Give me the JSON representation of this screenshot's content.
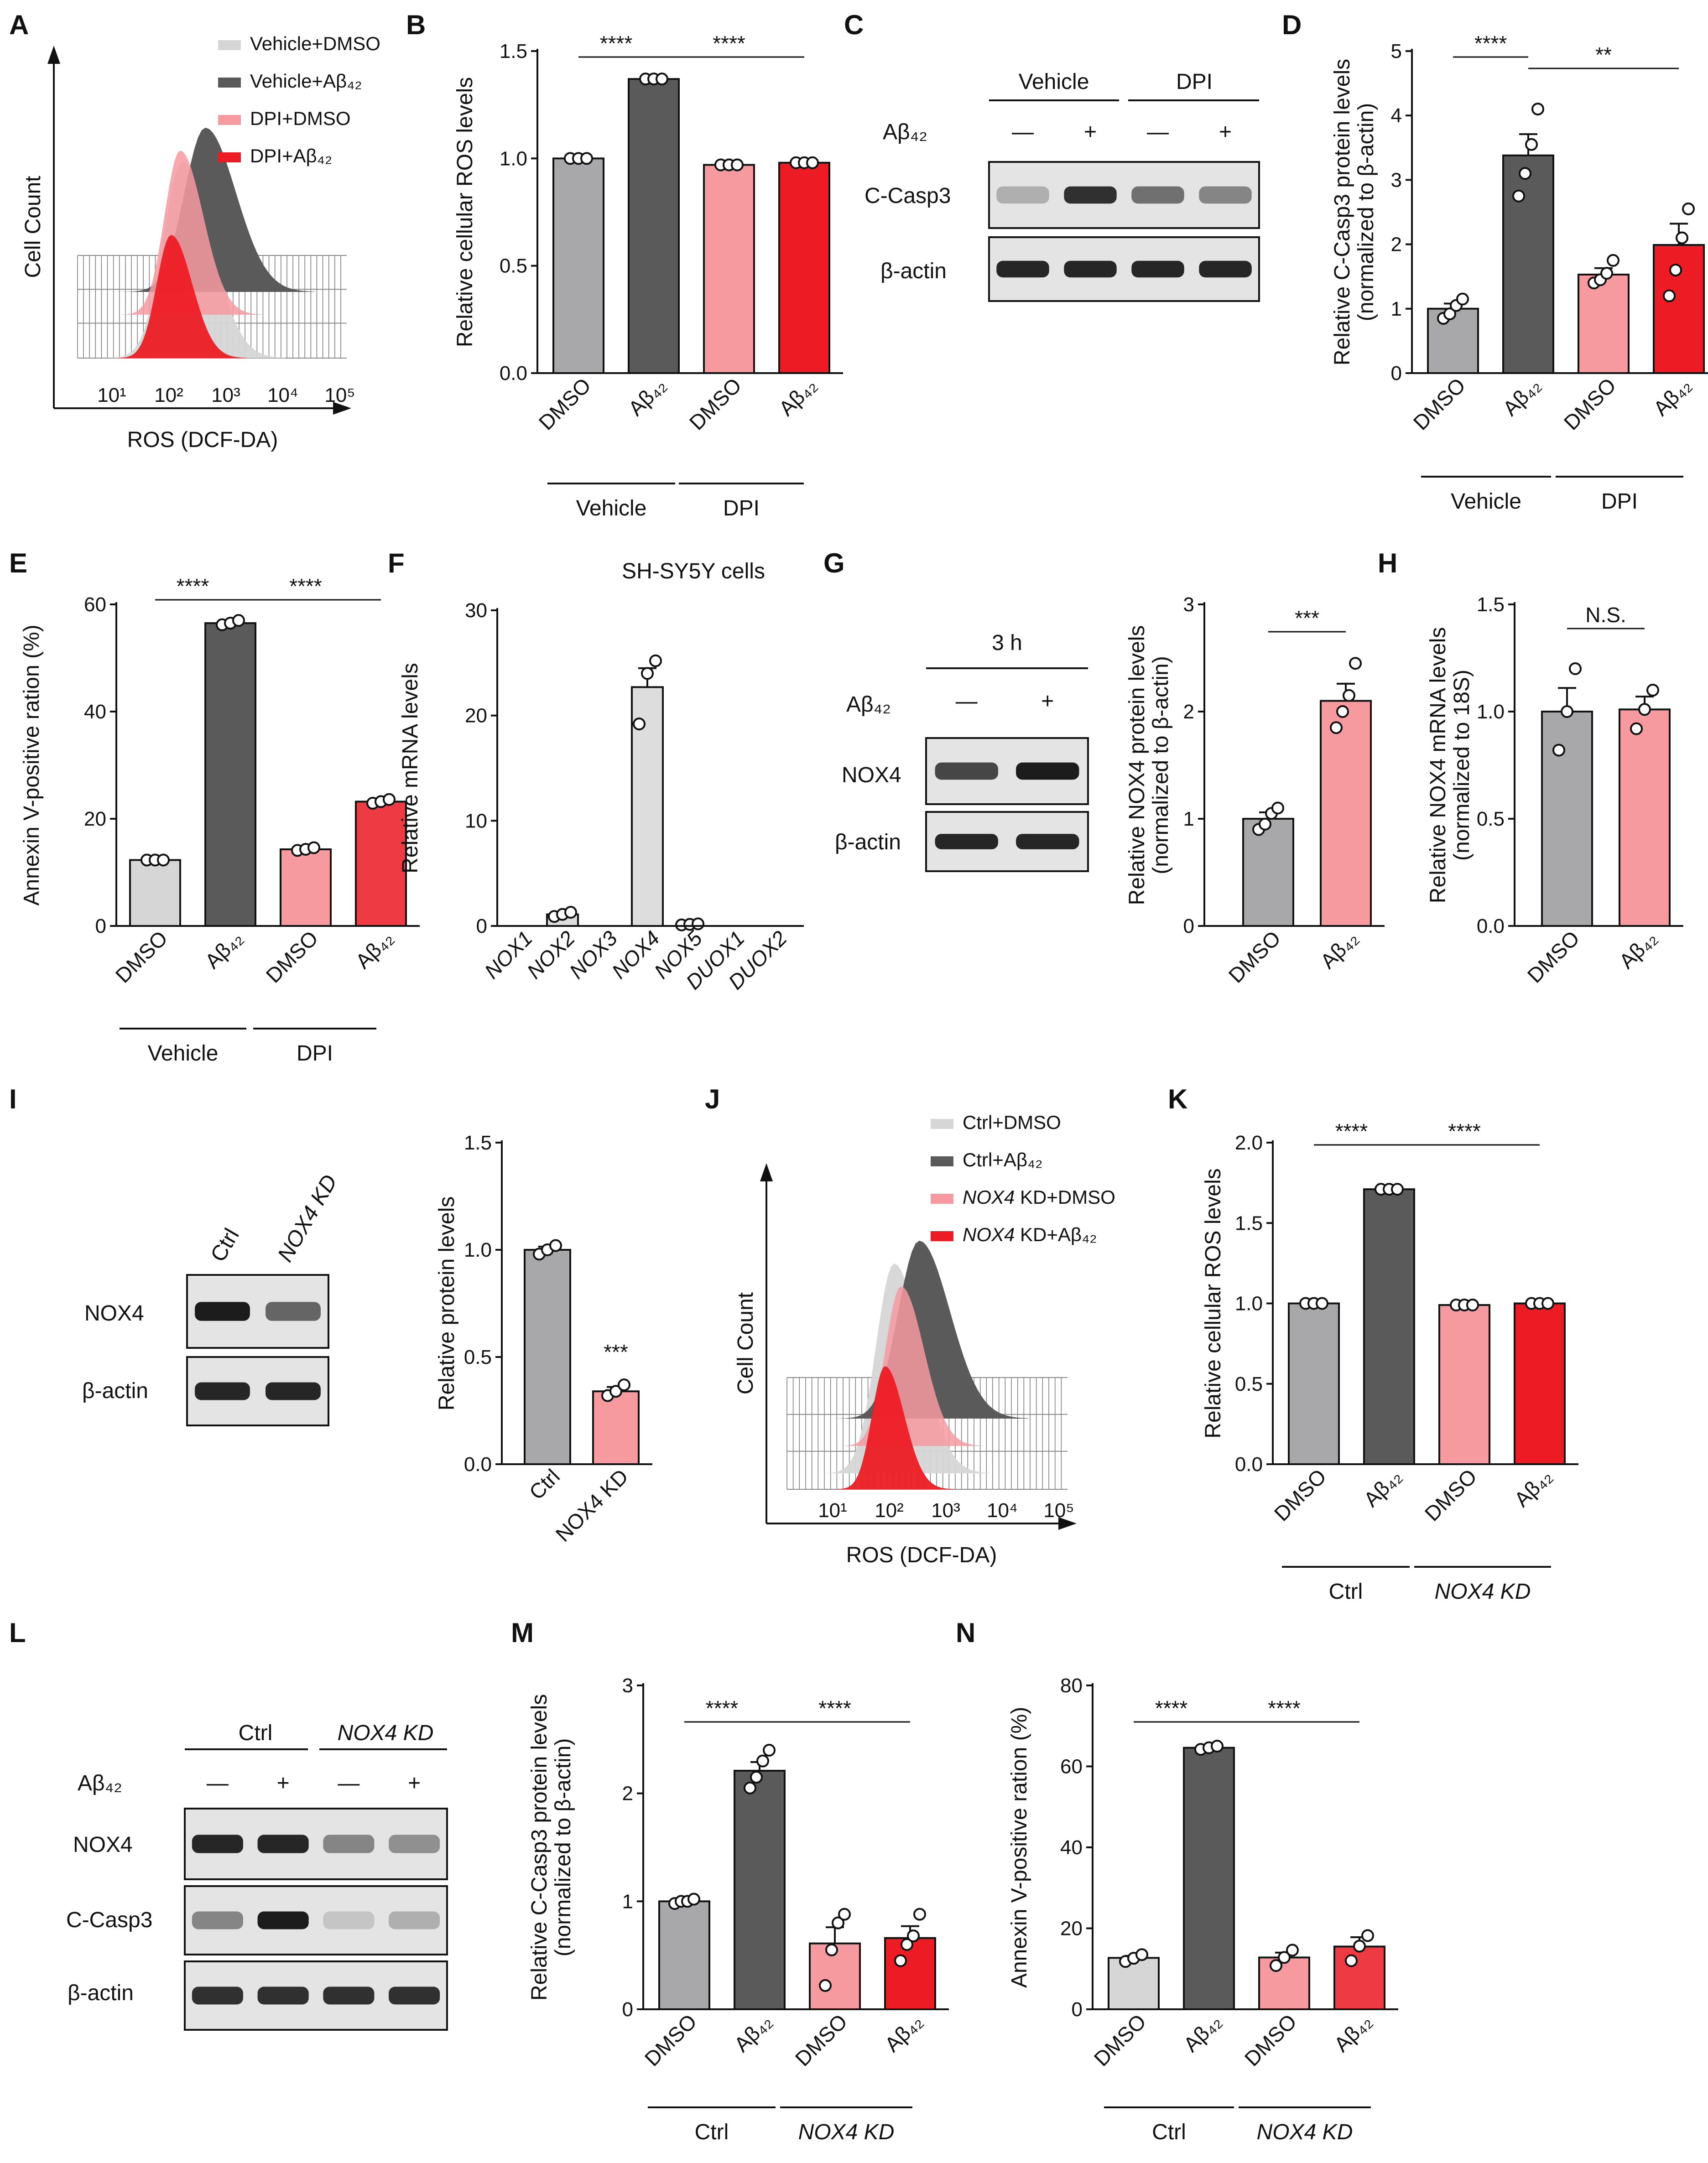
{
  "colors": {
    "grey": "#c4c4c4",
    "darkgrey": "#5a5a5a",
    "pink": "#f79aa0",
    "red": "#ed1c24",
    "lightgrey": "#d6d6d6",
    "midgrey": "#a8a8aa"
  },
  "chart_data": [
    {
      "panel": "A",
      "type": "histogram",
      "xlabel": "ROS (DCF-DA)",
      "ylabel": "Cell Count",
      "xticks": [
        "10¹",
        "10²",
        "10³",
        "10⁴",
        "10⁵"
      ],
      "legend": [
        "Vehicle+DMSO",
        "Vehicle+Aβ₄₂",
        "DPI+DMSO",
        "DPI+Aβ₄₂"
      ]
    },
    {
      "panel": "B",
      "type": "bar",
      "ylabel": "Relative cellular ROS levels",
      "ylim": [
        0,
        1.5
      ],
      "yticks": [
        "0.0",
        "0.5",
        "1.0",
        "1.5"
      ],
      "categories": [
        "DMSO",
        "Aβ₄₂",
        "DMSO",
        "Aβ₄₂"
      ],
      "values": [
        1.0,
        1.37,
        0.97,
        0.98
      ],
      "errors": [
        0.01,
        0.005,
        0.005,
        0.005
      ],
      "points": [
        [
          1.0,
          1.0,
          1.0
        ],
        [
          1.37,
          1.37,
          1.37
        ],
        [
          0.97,
          0.97,
          0.97
        ],
        [
          0.98,
          0.98,
          0.98
        ]
      ],
      "groups": [
        "Vehicle",
        "DPI"
      ],
      "sig": [
        "****",
        "****"
      ]
    },
    {
      "panel": "C",
      "type": "western",
      "groups": [
        "Vehicle",
        "DPI"
      ],
      "treatment": "Aβ₄₂",
      "signs": [
        "—",
        "+",
        "—",
        "+"
      ],
      "rows": [
        "C-Casp3",
        "β-actin"
      ]
    },
    {
      "panel": "D",
      "type": "bar",
      "ylabel": "Relative C-Casp3 protein levels",
      "ylabel2": "(normalized to β-actin)",
      "ylim": [
        0,
        5
      ],
      "yticks": [
        "0",
        "1",
        "2",
        "3",
        "4",
        "5"
      ],
      "categories": [
        "DMSO",
        "Aβ₄₂",
        "DMSO",
        "Aβ₄₂"
      ],
      "values": [
        1.0,
        3.38,
        1.53,
        1.99
      ],
      "errors": [
        0.08,
        0.33,
        0.1,
        0.33
      ],
      "points": [
        [
          0.85,
          0.92,
          1.05,
          1.15
        ],
        [
          2.75,
          3.1,
          3.55,
          4.1
        ],
        [
          1.4,
          1.45,
          1.55,
          1.75
        ],
        [
          1.2,
          1.6,
          2.1,
          2.55
        ]
      ],
      "groups": [
        "Vehicle",
        "DPI"
      ],
      "sig": [
        "****",
        "**"
      ]
    },
    {
      "panel": "E",
      "type": "bar",
      "ylabel": "Annexin V-positive ration (%)",
      "ylim": [
        0,
        60
      ],
      "yticks": [
        "0",
        "20",
        "40",
        "60"
      ],
      "categories": [
        "DMSO",
        "Aβ₄₂",
        "DMSO",
        "Aβ₄₂"
      ],
      "values": [
        12.3,
        56.5,
        14.3,
        23.2
      ],
      "errors": [
        0.2,
        0.4,
        0.3,
        0.4
      ],
      "points": [
        [
          12.3,
          12.3,
          12.3
        ],
        [
          56.2,
          56.5,
          57.0
        ],
        [
          14.1,
          14.3,
          14.6
        ],
        [
          22.9,
          23.2,
          23.6
        ]
      ],
      "groups": [
        "Vehicle",
        "DPI"
      ],
      "sig": [
        "****",
        "****"
      ]
    },
    {
      "panel": "F",
      "type": "bar",
      "title": "SH-SY5Y cells",
      "ylabel": "Relative mRNA levels",
      "ylim": [
        0,
        30
      ],
      "yticks": [
        "0",
        "10",
        "20",
        "30"
      ],
      "categories": [
        "NOX1",
        "NOX2",
        "NOX3",
        "NOX4",
        "NOX5",
        "DUOX1",
        "DUOX2"
      ],
      "values": [
        0.0,
        1.1,
        0.0,
        22.7,
        0.15,
        0.0,
        0.0
      ],
      "errors": [
        0,
        0.15,
        0,
        1.8,
        0.05,
        0,
        0
      ],
      "points": [
        [],
        [
          0.9,
          1.1,
          1.3
        ],
        [],
        [
          19.2,
          24.0,
          25.2
        ],
        [
          0.1,
          0.15,
          0.2
        ],
        [],
        []
      ]
    },
    {
      "panel": "G",
      "type": "western+bar",
      "blot_title": "3 h",
      "treatment": "Aβ₄₂",
      "signs": [
        "—",
        "+"
      ],
      "rows": [
        "NOX4",
        "β-actin"
      ],
      "ylabel": "Relative NOX4 protein levels",
      "ylabel2": "(normalized to β-actin)",
      "ylim": [
        0,
        3
      ],
      "yticks": [
        "0",
        "1",
        "2",
        "3"
      ],
      "categories": [
        "DMSO",
        "Aβ₄₂"
      ],
      "values": [
        1.0,
        2.1
      ],
      "errors": [
        0.06,
        0.16
      ],
      "points": [
        [
          0.9,
          0.95,
          1.05,
          1.1
        ],
        [
          1.85,
          2.0,
          2.15,
          2.45
        ]
      ],
      "sig": [
        "***"
      ]
    },
    {
      "panel": "H",
      "type": "bar",
      "ylabel": "Relative NOX4 mRNA levels",
      "ylabel2": "(normalized to 18S)",
      "ylim": [
        0,
        1.5
      ],
      "yticks": [
        "0.0",
        "0.5",
        "1.0",
        "1.5"
      ],
      "categories": [
        "DMSO",
        "Aβ₄₂"
      ],
      "values": [
        1.0,
        1.01
      ],
      "errors": [
        0.11,
        0.06
      ],
      "points": [
        [
          0.82,
          1.0,
          1.2
        ],
        [
          0.92,
          1.01,
          1.1
        ]
      ],
      "sig": [
        "N.S."
      ]
    },
    {
      "panel": "I",
      "type": "western+bar",
      "lanes": [
        "Ctrl",
        "NOX4 KD"
      ],
      "rows": [
        "NOX4",
        "β-actin"
      ],
      "ylabel": "Relative protein levels",
      "ylim": [
        0,
        1.5
      ],
      "yticks": [
        "0.0",
        "0.5",
        "1.0",
        "1.5"
      ],
      "categories": [
        "Ctrl",
        "NOX4 KD"
      ],
      "values": [
        1.0,
        0.34
      ],
      "errors": [
        0.015,
        0.02
      ],
      "points": [
        [
          0.98,
          1.0,
          1.02
        ],
        [
          0.32,
          0.34,
          0.37
        ]
      ],
      "sig": [
        "***"
      ]
    },
    {
      "panel": "J",
      "type": "histogram",
      "xlabel": "ROS (DCF-DA)",
      "ylabel": "Cell Count",
      "xticks": [
        "10¹",
        "10²",
        "10³",
        "10⁴",
        "10⁵"
      ],
      "legend": [
        "Ctrl+DMSO",
        "Ctrl+Aβ₄₂",
        "NOX4 KD+DMSO",
        "NOX4 KD+Aβ₄₂"
      ]
    },
    {
      "panel": "K",
      "type": "bar",
      "ylabel": "Relative cellular ROS levels",
      "ylim": [
        0,
        2.0
      ],
      "yticks": [
        "0.0",
        "0.5",
        "1.0",
        "1.5",
        "2.0"
      ],
      "categories": [
        "DMSO",
        "Aβ₄₂",
        "DMSO",
        "Aβ₄₂"
      ],
      "values": [
        1.0,
        1.71,
        0.99,
        1.0
      ],
      "errors": [
        0.005,
        0.005,
        0.005,
        0.005
      ],
      "points": [
        [
          1.0,
          1.0,
          1.0
        ],
        [
          1.71,
          1.71,
          1.71
        ],
        [
          0.99,
          0.99,
          0.99
        ],
        [
          1.0,
          1.0,
          1.0
        ]
      ],
      "groups": [
        "Ctrl",
        "NOX4 KD"
      ],
      "sig": [
        "****",
        "****"
      ]
    },
    {
      "panel": "L",
      "type": "western",
      "groups": [
        "Ctrl",
        "NOX4 KD"
      ],
      "treatment": "Aβ₄₂",
      "signs": [
        "—",
        "+",
        "—",
        "+"
      ],
      "rows": [
        "NOX4",
        "C-Casp3",
        "β-actin"
      ]
    },
    {
      "panel": "M",
      "type": "bar",
      "ylabel": "Relative C-Casp3 protein levels",
      "ylabel2": "(normalized to β-actin)",
      "ylim": [
        0,
        3
      ],
      "yticks": [
        "0",
        "1",
        "2",
        "3"
      ],
      "categories": [
        "DMSO",
        "Aβ₄₂",
        "DMSO",
        "Aβ₄₂"
      ],
      "values": [
        1.0,
        2.21,
        0.61,
        0.66
      ],
      "errors": [
        0.02,
        0.08,
        0.15,
        0.11
      ],
      "points": [
        [
          0.98,
          1.0,
          1.0,
          1.02
        ],
        [
          2.05,
          2.15,
          2.3,
          2.4
        ],
        [
          0.22,
          0.55,
          0.8,
          0.88
        ],
        [
          0.45,
          0.6,
          0.68,
          0.88
        ]
      ],
      "groups": [
        "Ctrl",
        "NOX4 KD"
      ],
      "sig": [
        "****",
        "****"
      ]
    },
    {
      "panel": "N",
      "type": "bar",
      "ylabel": "Annexin V-positive ration (%)",
      "ylim": [
        0,
        80
      ],
      "yticks": [
        "0",
        "20",
        "40",
        "60",
        "80"
      ],
      "categories": [
        "DMSO",
        "Aβ₄₂",
        "DMSO",
        "Aβ₄₂"
      ],
      "values": [
        12.7,
        64.6,
        12.8,
        15.5
      ],
      "errors": [
        0.5,
        0.3,
        1.2,
        2.3
      ],
      "points": [
        [
          11.8,
          12.6,
          13.5
        ],
        [
          64.2,
          64.6,
          65.0
        ],
        [
          10.8,
          12.8,
          14.6
        ],
        [
          12.0,
          15.6,
          18.2
        ]
      ],
      "groups": [
        "Ctrl",
        "NOX4 KD"
      ],
      "sig": [
        "****",
        "****"
      ]
    }
  ]
}
